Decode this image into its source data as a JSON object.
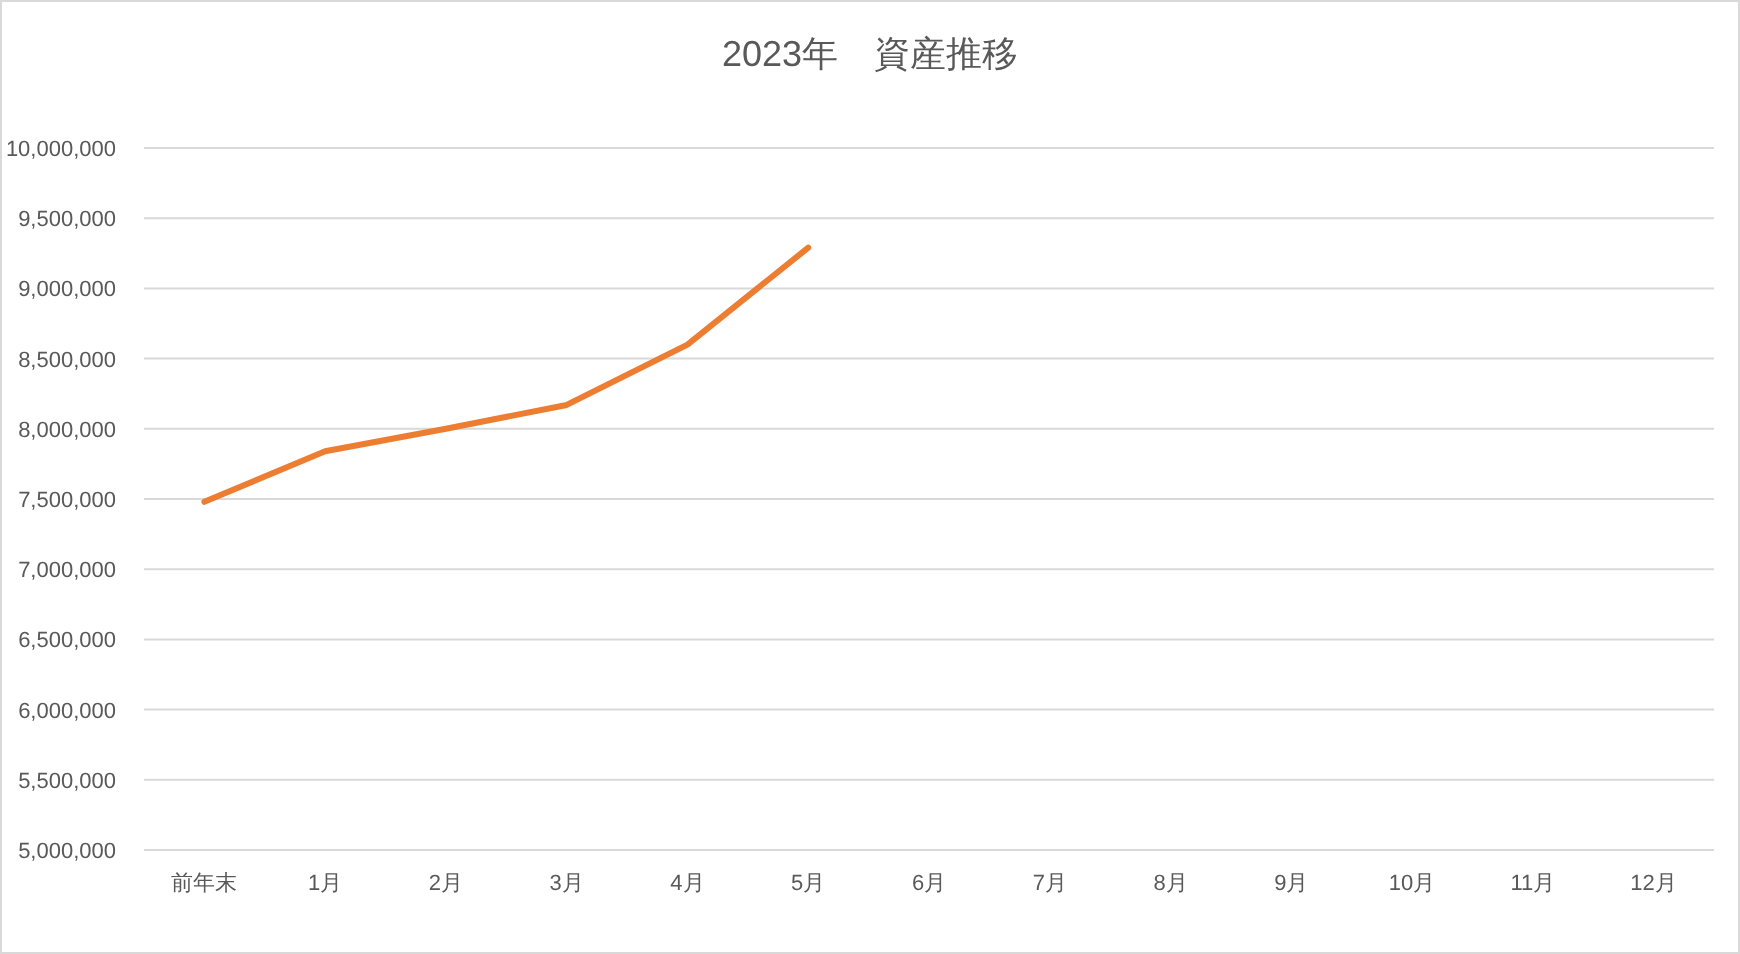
{
  "chart_data": {
    "type": "line",
    "title": "2023年　資産推移",
    "categories": [
      "前年末",
      "1月",
      "2月",
      "3月",
      "4月",
      "5月",
      "6月",
      "7月",
      "8月",
      "9月",
      "10月",
      "11月",
      "12月"
    ],
    "series": [
      {
        "color": "#ed7d31",
        "values": [
          7480000,
          7840000,
          8000000,
          8170000,
          8600000,
          9290000,
          null,
          null,
          null,
          null,
          null,
          null,
          null
        ]
      }
    ],
    "ylim": [
      5000000,
      10000000
    ],
    "yticks": [
      {
        "value": 5000000,
        "label": "5,000,000"
      },
      {
        "value": 5500000,
        "label": "5,500,000"
      },
      {
        "value": 6000000,
        "label": "6,000,000"
      },
      {
        "value": 6500000,
        "label": "6,500,000"
      },
      {
        "value": 7000000,
        "label": "7,000,000"
      },
      {
        "value": 7500000,
        "label": "7,500,000"
      },
      {
        "value": 8000000,
        "label": "8,000,000"
      },
      {
        "value": 8500000,
        "label": "8,500,000"
      },
      {
        "value": 9000000,
        "label": "9,000,000"
      },
      {
        "value": 9500000,
        "label": "9,500,000"
      },
      {
        "value": 10000000,
        "label": "10,000,000"
      }
    ],
    "grid": "y",
    "marker": "none",
    "line_style": "solid"
  }
}
